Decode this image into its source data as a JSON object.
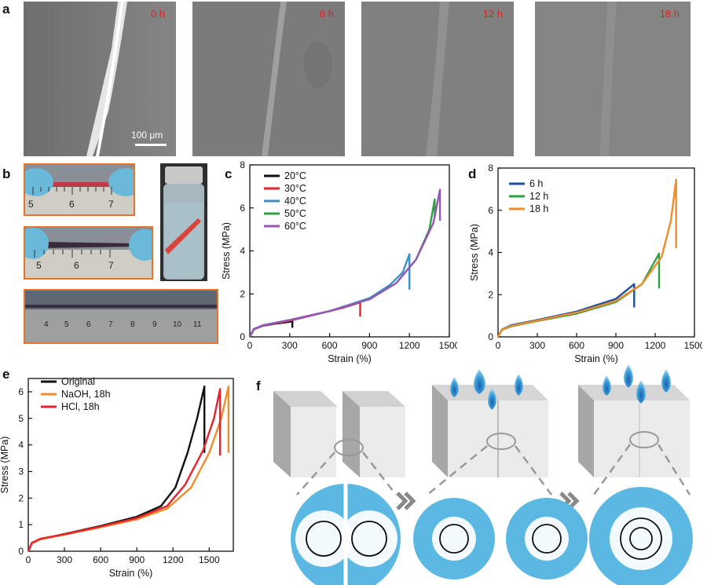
{
  "panel_labels": {
    "a": "a",
    "b": "b",
    "c": "c",
    "d": "d",
    "e": "e",
    "f": "f"
  },
  "panel_a": {
    "times": [
      "0 h",
      "6 h",
      "12 h",
      "18 h"
    ],
    "scale_bar": "100 μm"
  },
  "panel_b": {
    "ruler_numbers_1": [
      "5",
      "6",
      "7"
    ],
    "ruler_numbers_2": [
      "5",
      "6",
      "7"
    ],
    "ruler_numbers_3": [
      "4",
      "5",
      "6",
      "7",
      "8",
      "9",
      "10",
      "11"
    ]
  },
  "colors": {
    "black": "#111111",
    "red": "#e8222c",
    "blue": "#3a8fc7",
    "green": "#2ea043",
    "purple": "#9a55b8",
    "navy": "#1f4e9c",
    "orange": "#f08c2a",
    "schematic_circle": "#5bb8e2"
  },
  "chart_data": [
    {
      "id": "c",
      "type": "line",
      "xlabel": "Strain (%)",
      "ylabel": "Stress (MPa)",
      "xlim": [
        0,
        1500
      ],
      "ylim": [
        0,
        8
      ],
      "xticks": [
        0,
        300,
        600,
        900,
        1200,
        1500
      ],
      "yticks": [
        0,
        2,
        4,
        6,
        8
      ],
      "series": [
        {
          "name": "20°C",
          "color": "#111111",
          "points": [
            [
              0,
              0
            ],
            [
              30,
              0.35
            ],
            [
              100,
              0.52
            ],
            [
              200,
              0.62
            ],
            [
              300,
              0.7
            ],
            [
              320,
              0.72
            ]
          ],
          "end_drop": 0.42
        },
        {
          "name": "30°C",
          "color": "#e8222c",
          "points": [
            [
              0,
              0
            ],
            [
              30,
              0.36
            ],
            [
              100,
              0.53
            ],
            [
              300,
              0.75
            ],
            [
              500,
              1.05
            ],
            [
              700,
              1.35
            ],
            [
              830,
              1.6
            ]
          ],
          "end_drop": 0.95
        },
        {
          "name": "40°C",
          "color": "#3a8fc7",
          "points": [
            [
              0,
              0
            ],
            [
              30,
              0.36
            ],
            [
              100,
              0.54
            ],
            [
              300,
              0.78
            ],
            [
              600,
              1.2
            ],
            [
              900,
              1.8
            ],
            [
              1050,
              2.4
            ],
            [
              1150,
              3.0
            ],
            [
              1200,
              3.85
            ]
          ],
          "end_drop": 2.2
        },
        {
          "name": "50°C",
          "color": "#2ea043",
          "points": [
            [
              0,
              0
            ],
            [
              30,
              0.36
            ],
            [
              100,
              0.54
            ],
            [
              300,
              0.78
            ],
            [
              600,
              1.2
            ],
            [
              900,
              1.75
            ],
            [
              1100,
              2.5
            ],
            [
              1250,
              3.6
            ],
            [
              1350,
              5.0
            ],
            [
              1390,
              6.4
            ]
          ],
          "end_drop": 5.6
        },
        {
          "name": "60°C",
          "color": "#9a55b8",
          "points": [
            [
              0,
              0
            ],
            [
              30,
              0.36
            ],
            [
              100,
              0.54
            ],
            [
              300,
              0.78
            ],
            [
              600,
              1.2
            ],
            [
              900,
              1.75
            ],
            [
              1100,
              2.5
            ],
            [
              1250,
              3.6
            ],
            [
              1380,
              5.3
            ],
            [
              1430,
              6.85
            ]
          ],
          "end_drop": 5.4
        }
      ]
    },
    {
      "id": "d",
      "type": "line",
      "xlabel": "Strain (%)",
      "ylabel": "Stress (MPa)",
      "xlim": [
        0,
        1500
      ],
      "ylim": [
        0,
        8
      ],
      "xticks": [
        0,
        300,
        600,
        900,
        1200,
        1500
      ],
      "yticks": [
        0,
        2,
        4,
        6,
        8
      ],
      "series": [
        {
          "name": "6 h",
          "color": "#1f4e9c",
          "points": [
            [
              0,
              0
            ],
            [
              30,
              0.35
            ],
            [
              100,
              0.55
            ],
            [
              300,
              0.8
            ],
            [
              600,
              1.2
            ],
            [
              900,
              1.8
            ],
            [
              1040,
              2.5
            ]
          ],
          "end_drop": 1.4
        },
        {
          "name": "12 h",
          "color": "#2ea043",
          "points": [
            [
              0,
              0
            ],
            [
              30,
              0.33
            ],
            [
              100,
              0.5
            ],
            [
              300,
              0.75
            ],
            [
              600,
              1.1
            ],
            [
              900,
              1.65
            ],
            [
              1100,
              2.5
            ],
            [
              1230,
              3.95
            ]
          ],
          "end_drop": 2.3
        },
        {
          "name": "18 h",
          "color": "#f08c2a",
          "points": [
            [
              0,
              0
            ],
            [
              30,
              0.34
            ],
            [
              100,
              0.52
            ],
            [
              300,
              0.77
            ],
            [
              600,
              1.15
            ],
            [
              900,
              1.7
            ],
            [
              1100,
              2.5
            ],
            [
              1250,
              3.8
            ],
            [
              1320,
              5.5
            ],
            [
              1360,
              7.45
            ]
          ],
          "end_drop": 4.2
        }
      ]
    },
    {
      "id": "e",
      "type": "line",
      "xlabel": "Strain (%)",
      "ylabel": "Stress (MPa)",
      "xlim": [
        0,
        1700
      ],
      "ylim": [
        0,
        6.5
      ],
      "xticks": [
        0,
        300,
        600,
        900,
        1200,
        1500
      ],
      "yticks": [
        0,
        1,
        2,
        3,
        4,
        5,
        6
      ],
      "series": [
        {
          "name": "Original",
          "color": "#111111",
          "points": [
            [
              0,
              0
            ],
            [
              30,
              0.3
            ],
            [
              100,
              0.45
            ],
            [
              300,
              0.65
            ],
            [
              600,
              0.95
            ],
            [
              900,
              1.3
            ],
            [
              1100,
              1.7
            ],
            [
              1220,
              2.4
            ],
            [
              1320,
              3.7
            ],
            [
              1400,
              5.0
            ],
            [
              1460,
              6.2
            ]
          ],
          "end_drop": 3.7
        },
        {
          "name": "NaOH, 18h",
          "color": "#f08c2a",
          "points": [
            [
              0,
              0
            ],
            [
              30,
              0.3
            ],
            [
              100,
              0.45
            ],
            [
              300,
              0.62
            ],
            [
              600,
              0.9
            ],
            [
              900,
              1.2
            ],
            [
              1150,
              1.6
            ],
            [
              1350,
              2.4
            ],
            [
              1500,
              3.7
            ],
            [
              1600,
              5.0
            ],
            [
              1660,
              6.2
            ]
          ],
          "end_drop": 3.7
        },
        {
          "name": "HCl, 18h",
          "color": "#e8222c",
          "points": [
            [
              0,
              0
            ],
            [
              30,
              0.32
            ],
            [
              100,
              0.47
            ],
            [
              300,
              0.64
            ],
            [
              600,
              0.93
            ],
            [
              900,
              1.25
            ],
            [
              1150,
              1.7
            ],
            [
              1300,
              2.5
            ],
            [
              1450,
              3.8
            ],
            [
              1540,
              5.0
            ],
            [
              1590,
              6.1
            ]
          ],
          "end_drop": 3.6
        }
      ]
    }
  ]
}
